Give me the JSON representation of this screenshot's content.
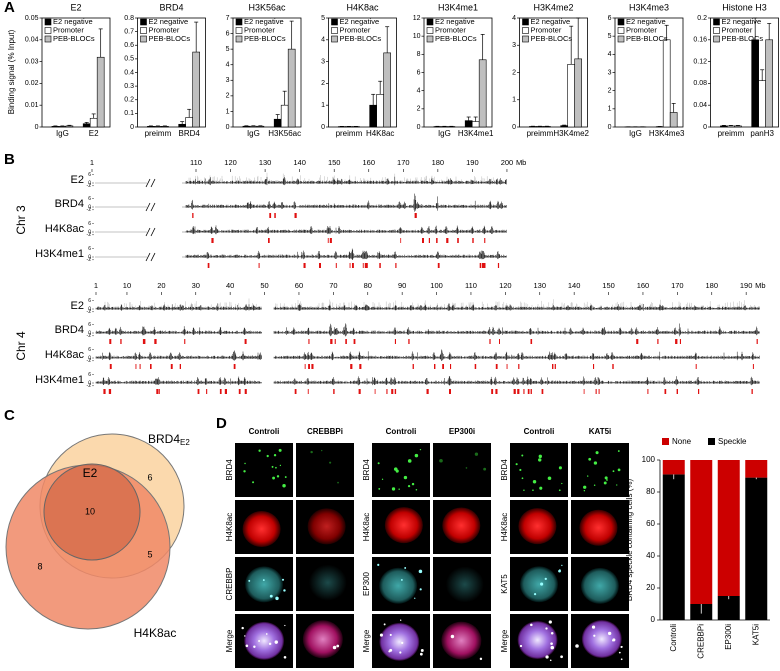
{
  "panel_labels": [
    "A",
    "B",
    "C",
    "D"
  ],
  "chart_data": [
    {
      "type": "bar",
      "title": "E2",
      "ylabel": "Binding signal (% Input)",
      "categories": [
        "IgG",
        "E2"
      ],
      "series": [
        {
          "name": "E2 negative",
          "color": "#000000",
          "values": [
            0.0003,
            0.0015
          ],
          "errors": [
            0.0002,
            0.0006
          ]
        },
        {
          "name": "Promoter",
          "color": "#ffffff",
          "values": [
            0.0003,
            0.004
          ],
          "errors": [
            0.0002,
            0.002
          ]
        },
        {
          "name": "PEB-BLOCs",
          "color": "#bfbfbf",
          "values": [
            0.0005,
            0.032
          ],
          "errors": [
            0.0003,
            0.013
          ]
        }
      ],
      "ylim": [
        0,
        0.05
      ],
      "yticks": [
        0,
        0.01,
        0.02,
        0.03,
        0.04,
        0.05
      ],
      "legend": "upper left"
    },
    {
      "type": "bar",
      "title": "BRD4",
      "categories": [
        "preimm",
        "BRD4"
      ],
      "series": [
        {
          "name": "E2 negative",
          "color": "#000000",
          "values": [
            0.005,
            0.02
          ],
          "errors": [
            0.003,
            0.02
          ]
        },
        {
          "name": "Promoter",
          "color": "#ffffff",
          "values": [
            0.005,
            0.07
          ],
          "errors": [
            0.003,
            0.06
          ]
        },
        {
          "name": "PEB-BLOCs",
          "color": "#bfbfbf",
          "values": [
            0.005,
            0.55
          ],
          "errors": [
            0.003,
            0.22
          ]
        }
      ],
      "ylim": [
        0,
        0.8
      ],
      "yticks": [
        0,
        0.1,
        0.2,
        0.3,
        0.4,
        0.5,
        0.6,
        0.7,
        0.8
      ],
      "legend": "upper left"
    },
    {
      "type": "bar",
      "title": "H3K56ac",
      "categories": [
        "IgG",
        "H3K56ac"
      ],
      "series": [
        {
          "name": "E2 negative",
          "color": "#000000",
          "values": [
            0.05,
            0.5
          ],
          "errors": [
            0.03,
            0.3
          ]
        },
        {
          "name": "Promoter",
          "color": "#ffffff",
          "values": [
            0.05,
            1.4
          ],
          "errors": [
            0.03,
            0.9
          ]
        },
        {
          "name": "PEB-BLOCs",
          "color": "#bfbfbf",
          "values": [
            0.05,
            5.0
          ],
          "errors": [
            0.03,
            1.8
          ]
        }
      ],
      "ylim": [
        0,
        7
      ],
      "yticks": [
        0,
        1,
        2,
        3,
        4,
        5,
        6,
        7
      ],
      "legend": "upper left"
    },
    {
      "type": "bar",
      "title": "H4K8ac",
      "categories": [
        "preimm",
        "H4K8ac"
      ],
      "series": [
        {
          "name": "E2 negative",
          "color": "#000000",
          "values": [
            0.02,
            1.0
          ],
          "errors": [
            0.01,
            0.5
          ]
        },
        {
          "name": "Promoter",
          "color": "#ffffff",
          "values": [
            0.02,
            1.5
          ],
          "errors": [
            0.01,
            0.6
          ]
        },
        {
          "name": "PEB-BLOCs",
          "color": "#bfbfbf",
          "values": [
            0.02,
            3.4
          ],
          "errors": [
            0.01,
            1.2
          ]
        }
      ],
      "ylim": [
        0,
        5
      ],
      "yticks": [
        0,
        1,
        2,
        3,
        4,
        5
      ],
      "legend": "upper left"
    },
    {
      "type": "bar",
      "title": "H3K4me1",
      "categories": [
        "IgG",
        "H3K4me1"
      ],
      "series": [
        {
          "name": "E2 negative",
          "color": "#000000",
          "values": [
            0.05,
            0.7
          ],
          "errors": [
            0.03,
            0.4
          ]
        },
        {
          "name": "Promoter",
          "color": "#ffffff",
          "values": [
            0.05,
            0.6
          ],
          "errors": [
            0.03,
            0.5
          ]
        },
        {
          "name": "PEB-BLOCs",
          "color": "#bfbfbf",
          "values": [
            0.05,
            7.4
          ],
          "errors": [
            0.03,
            2.8
          ]
        }
      ],
      "ylim": [
        0,
        12
      ],
      "yticks": [
        0,
        2,
        4,
        6,
        8,
        10,
        12
      ],
      "legend": "upper left"
    },
    {
      "type": "bar",
      "title": "H3K4me2",
      "categories": [
        "preimm",
        "H3K4me2"
      ],
      "series": [
        {
          "name": "E2 negative",
          "color": "#000000",
          "values": [
            0.02,
            0.05
          ],
          "errors": [
            0.01,
            0.02
          ]
        },
        {
          "name": "Promoter",
          "color": "#ffffff",
          "values": [
            0.02,
            2.3
          ],
          "errors": [
            0.01,
            1.4
          ]
        },
        {
          "name": "PEB-BLOCs",
          "color": "#bfbfbf",
          "values": [
            0.02,
            2.5
          ],
          "errors": [
            0.01,
            1.5
          ]
        }
      ],
      "ylim": [
        0,
        4
      ],
      "yticks": [
        0,
        1,
        2,
        3,
        4
      ],
      "legend": "upper left"
    },
    {
      "type": "bar",
      "title": "H3K4me3",
      "categories": [
        "IgG",
        "H3K4me3"
      ],
      "series": [
        {
          "name": "E2 negative",
          "color": "#000000",
          "values": [
            0.01,
            0.02
          ],
          "errors": [
            0.005,
            0.01
          ]
        },
        {
          "name": "Promoter",
          "color": "#ffffff",
          "values": [
            0.01,
            4.8
          ],
          "errors": [
            0.005,
            0.8
          ]
        },
        {
          "name": "PEB-BLOCs",
          "color": "#bfbfbf",
          "values": [
            0.01,
            0.8
          ],
          "errors": [
            0.005,
            0.5
          ]
        }
      ],
      "ylim": [
        0,
        6
      ],
      "yticks": [
        0,
        1,
        2,
        3,
        4,
        5,
        6
      ],
      "legend": "upper left"
    },
    {
      "type": "bar",
      "title": "Histone H3",
      "categories": [
        "preimm",
        "panH3"
      ],
      "series": [
        {
          "name": "E2 negative",
          "color": "#000000",
          "values": [
            0.002,
            0.16
          ],
          "errors": [
            0.001,
            0.04
          ]
        },
        {
          "name": "Promoter",
          "color": "#ffffff",
          "values": [
            0.002,
            0.085
          ],
          "errors": [
            0.001,
            0.02
          ]
        },
        {
          "name": "PEB-BLOCs",
          "color": "#bfbfbf",
          "values": [
            0.002,
            0.16
          ],
          "errors": [
            0.001,
            0.03
          ]
        }
      ],
      "ylim": [
        0,
        0.2
      ],
      "yticks": [
        0,
        0.04,
        0.08,
        0.12,
        0.16,
        0.2
      ],
      "legend": "upper left"
    },
    {
      "type": "stacked_bar",
      "ylabel": "BRD4 speckle containing cells (%)",
      "categories": [
        "Controli",
        "CREBBPi",
        "EP300i",
        "KAT5i"
      ],
      "series": [
        {
          "name": "None",
          "color": "#cc0000",
          "values": [
            9,
            90,
            85,
            11
          ]
        },
        {
          "name": "Speckle",
          "color": "#000000",
          "values": [
            91,
            10,
            15,
            89
          ],
          "errors": [
            3,
            6,
            2,
            1
          ]
        }
      ],
      "ylim": [
        0,
        100
      ],
      "yticks": [
        0,
        20,
        40,
        60,
        80,
        100
      ],
      "legend": "top"
    }
  ],
  "genome_tracks": {
    "chromosomes": [
      {
        "label": "Chr 3",
        "unit": "Mb",
        "axis_break": true,
        "xticks": [
          1,
          110,
          120,
          130,
          140,
          150,
          160,
          170,
          180,
          190,
          200
        ],
        "tracks": [
          "E2",
          "BRD4",
          "H4K8ac",
          "H3K4me1"
        ],
        "track_yticks": [
          6,
          0,
          -2
        ]
      },
      {
        "label": "Chr 4",
        "unit": "Mb",
        "axis_break": false,
        "xticks": [
          1,
          10,
          20,
          30,
          40,
          50,
          60,
          70,
          80,
          90,
          100,
          110,
          120,
          130,
          140,
          150,
          160,
          170,
          180,
          190
        ],
        "tracks": [
          "E2",
          "BRD4",
          "H4K8ac",
          "H3K4me1"
        ],
        "track_yticks": [
          6,
          0,
          -2
        ]
      }
    ]
  },
  "venn": {
    "brd4": {
      "main": "BRD4",
      "sub": "E2"
    },
    "e2": "E2",
    "h4k8ac": "H4K8ac",
    "counts": {
      "all": "10",
      "brd4_only": "6",
      "brd4_h4k8ac": "5",
      "h4k8ac_only": "8"
    }
  },
  "microscopy": {
    "groups": [
      {
        "columns": [
          "Controli",
          "CREBBPi"
        ],
        "rows": [
          "BRD4",
          "H4K8ac",
          "CREBBP",
          "Merge"
        ]
      },
      {
        "columns": [
          "Controli",
          "EP300i"
        ],
        "rows": [
          "BRD4",
          "H4K8ac",
          "EP300",
          "Merge"
        ]
      },
      {
        "columns": [
          "Controli",
          "KAT5i"
        ],
        "rows": [
          "BRD4",
          "H4K8ac",
          "KAT5",
          "Merge"
        ]
      }
    ]
  }
}
